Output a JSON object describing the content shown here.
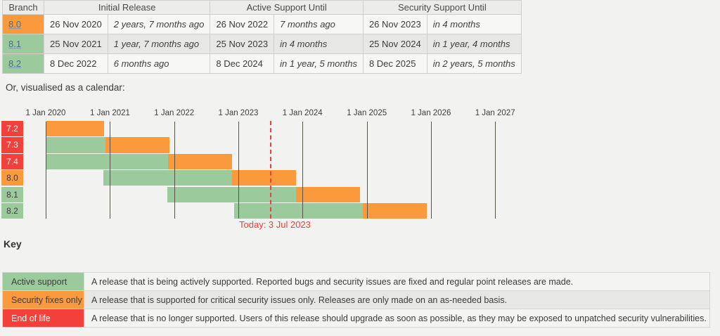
{
  "support_table": {
    "headers": {
      "branch": "Branch",
      "initial_release": "Initial Release",
      "active_support": "Active Support Until",
      "security_support": "Security Support Until"
    },
    "rows": [
      {
        "branch": "8.0",
        "status": "security",
        "initial_date": "26 Nov 2020",
        "initial_rel": "2 years, 7 months ago",
        "active_date": "26 Nov 2022",
        "active_rel": "7 months ago",
        "security_date": "26 Nov 2023",
        "security_rel": "in 4 months"
      },
      {
        "branch": "8.1",
        "status": "active",
        "initial_date": "25 Nov 2021",
        "initial_rel": "1 year, 7 months ago",
        "active_date": "25 Nov 2023",
        "active_rel": "in 4 months",
        "security_date": "25 Nov 2024",
        "security_rel": "in 1 year, 4 months"
      },
      {
        "branch": "8.2",
        "status": "active",
        "initial_date": "8 Dec 2022",
        "initial_rel": "6 months ago",
        "active_date": "8 Dec 2024",
        "active_rel": "in 1 year, 5 months",
        "security_date": "8 Dec 2025",
        "security_rel": "in 2 years, 5 months"
      }
    ]
  },
  "calendar_note": "Or, visualised as a calendar:",
  "chart_data": {
    "type": "gantt-timeline",
    "x_axis": {
      "labels": [
        "1 Jan 2020",
        "1 Jan 2021",
        "1 Jan 2022",
        "1 Jan 2023",
        "1 Jan 2024",
        "1 Jan 2025",
        "1 Jan 2026",
        "1 Jan 2027"
      ],
      "start": "2020-01-01",
      "end": "2027-01-01",
      "grid": true
    },
    "rows": [
      {
        "label": "7.2",
        "status": "eol",
        "segments": [
          {
            "kind": "security",
            "from": "2020-01-01",
            "to": "2020-11-30"
          }
        ]
      },
      {
        "label": "7.3",
        "status": "eol",
        "segments": [
          {
            "kind": "active",
            "from": "2020-01-01",
            "to": "2020-12-06"
          },
          {
            "kind": "security",
            "from": "2020-12-06",
            "to": "2021-12-06"
          }
        ]
      },
      {
        "label": "7.4",
        "status": "eol",
        "segments": [
          {
            "kind": "active",
            "from": "2020-01-01",
            "to": "2021-11-28"
          },
          {
            "kind": "security",
            "from": "2021-11-28",
            "to": "2022-11-28"
          }
        ]
      },
      {
        "label": "8.0",
        "status": "security",
        "segments": [
          {
            "kind": "active",
            "from": "2020-11-26",
            "to": "2022-11-26"
          },
          {
            "kind": "security",
            "from": "2022-11-26",
            "to": "2023-11-26"
          }
        ]
      },
      {
        "label": "8.1",
        "status": "active",
        "segments": [
          {
            "kind": "active",
            "from": "2021-11-25",
            "to": "2023-11-25"
          },
          {
            "kind": "security",
            "from": "2023-11-25",
            "to": "2024-11-25"
          }
        ]
      },
      {
        "label": "8.2",
        "status": "active",
        "segments": [
          {
            "kind": "active",
            "from": "2022-12-08",
            "to": "2024-12-08"
          },
          {
            "kind": "security",
            "from": "2024-12-08",
            "to": "2025-12-08"
          }
        ]
      }
    ],
    "today": {
      "date": "2023-07-03",
      "label": "Today: 3 Jul 2023"
    }
  },
  "key": {
    "heading": "Key",
    "rows": [
      {
        "label": "Active support",
        "status": "active",
        "description": "A release that is being actively supported. Reported bugs and security issues are fixed and regular point releases are made."
      },
      {
        "label": "Security fixes only",
        "status": "security",
        "description": "A release that is supported for critical security issues only. Releases are only made on an as-needed basis."
      },
      {
        "label": "End of life",
        "status": "eol",
        "description": "A release that is no longer supported. Users of this release should upgrade as soon as possible, as they may be exposed to unpatched security vulnerabilities."
      }
    ]
  },
  "colors": {
    "active": "#9bcb9c",
    "security": "#fb9a3c",
    "eol": "#f4403a",
    "gridline": "#55544b",
    "today": "#f23d3d",
    "link": "#47708c"
  }
}
